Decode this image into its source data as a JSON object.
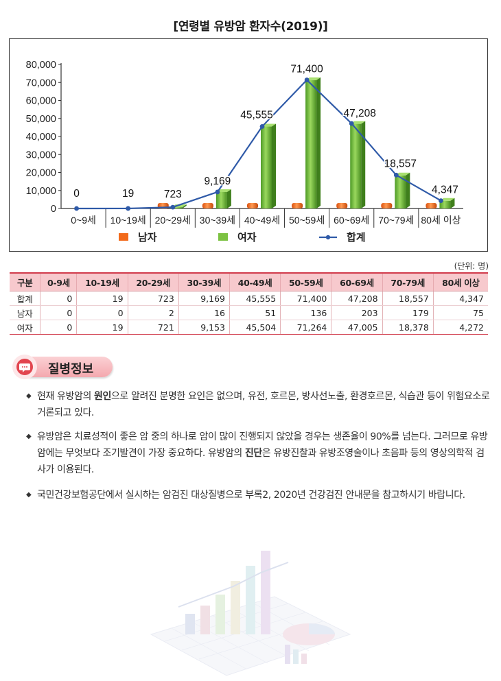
{
  "chart_data": {
    "type": "bar",
    "title": "[연령별 유방암 환자수(2019)]",
    "categories": [
      "0~9세",
      "10~19세",
      "20~29세",
      "30~39세",
      "40~49세",
      "50~59세",
      "60~69세",
      "70~79세",
      "80세 이상"
    ],
    "series": [
      {
        "name": "남자",
        "values": [
          0,
          0,
          2,
          16,
          51,
          136,
          203,
          179,
          75
        ],
        "color": "#f26a1b"
      },
      {
        "name": "여자",
        "values": [
          0,
          19,
          721,
          9153,
          45504,
          71264,
          47005,
          18378,
          4272
        ],
        "color": "#7cc242"
      },
      {
        "name": "합계",
        "type": "line",
        "values": [
          0,
          19,
          723,
          9169,
          45555,
          71400,
          47208,
          18557,
          4347
        ],
        "color": "#2f5aa8"
      }
    ],
    "data_labels": [
      "0",
      "19",
      "723",
      "9,169",
      "45,555",
      "71,400",
      "47,208",
      "18,557",
      "4,347"
    ],
    "y_ticks": [
      "0",
      "10,000",
      "20,000",
      "30,000",
      "40,000",
      "50,000",
      "60,000",
      "70,000",
      "80,000"
    ],
    "ylim": [
      0,
      80000
    ],
    "legend_placement": "bottom",
    "grid": false
  },
  "unit_note": "(단위: 명)",
  "table": {
    "headers": [
      "구분",
      "0-9세",
      "10-19세",
      "20-29세",
      "30-39세",
      "40-49세",
      "50-59세",
      "60-69세",
      "70-79세",
      "80세 이상"
    ],
    "rows": [
      [
        "합계",
        "0",
        "19",
        "723",
        "9,169",
        "45,555",
        "71,400",
        "47,208",
        "18,557",
        "4,347"
      ],
      [
        "남자",
        "0",
        "0",
        "2",
        "16",
        "51",
        "136",
        "203",
        "179",
        "75"
      ],
      [
        "여자",
        "0",
        "19",
        "721",
        "9,153",
        "45,504",
        "71,264",
        "47,005",
        "18,378",
        "4,272"
      ]
    ]
  },
  "section": {
    "title": "질병정보",
    "icon": "speech-bubble-icon"
  },
  "bullets": [
    {
      "pre": "현재 유방암의 ",
      "bold": "원인",
      "post": "으로 알려진 분명한 요인은 없으며, 유전, 호르몬, 방사선노출, 환경호르몬, 식습관 등이 위험요소로 거론되고 있다."
    },
    {
      "pre": "유방암은 치료성적이 좋은 암 중의 하나로 암이 많이 진행되지 않았을 경우는 생존율이 90%를 넘는다. 그러므로 유방암에는 무엇보다 조기발견이 가장 중요하다. 유방암의 ",
      "bold": "진단",
      "post": "은 유방진찰과 유방조영술이나 초음파 등의 영상의학적 검사가 이용된다."
    },
    {
      "pre": "국민건강보험공단에서 실시하는 암검진 대상질병으로 부록2, 2020년 건강검진 안내문을 참고하시기 바랍니다.",
      "bold": "",
      "post": ""
    }
  ],
  "decor_image": "faded-3d-chart-illustration",
  "colors": {
    "accent": "#d13b4b",
    "header_bg": "#f7c9cd",
    "male": "#f26a1b",
    "female": "#7cc242",
    "total": "#2f5aa8"
  }
}
